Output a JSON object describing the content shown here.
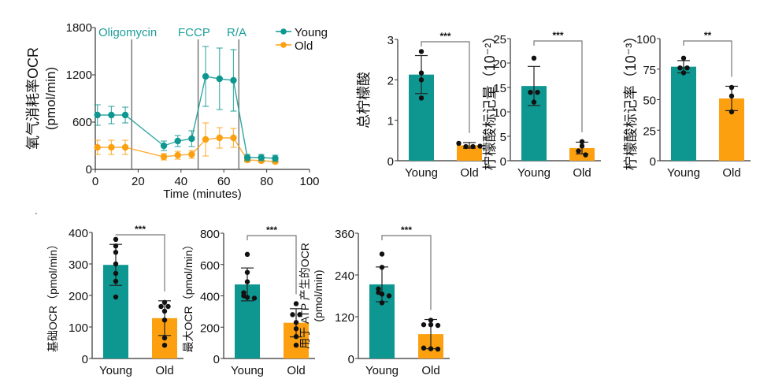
{
  "colors": {
    "young": "#0e9791",
    "old": "#fca010",
    "annotation": "#1b9e98",
    "axis": "#333333",
    "bracket": "#777777"
  },
  "stray_mark": "`",
  "chart_data": [
    {
      "id": "ocr-timecourse",
      "type": "line",
      "title": "",
      "xlabel": "Time (minutes)",
      "ylabel_lines": [
        "氧气消耗率OCR",
        "(pmol/min)"
      ],
      "xlim": [
        0,
        100
      ],
      "ylim": [
        0,
        1800
      ],
      "xticks": [
        0,
        20,
        40,
        60,
        80,
        100
      ],
      "yticks": [
        0,
        600,
        1200,
        1800
      ],
      "legend": {
        "position": "top-right",
        "entries": [
          "Young",
          "Old"
        ]
      },
      "injections": [
        {
          "label": "Oligomycin",
          "x": 17
        },
        {
          "label": "FCCP",
          "x": 48
        },
        {
          "label": "R/A",
          "x": 67
        }
      ],
      "x": [
        1,
        7.5,
        14,
        32,
        38.5,
        45,
        51.5,
        58,
        64.5,
        71,
        77.5,
        84
      ],
      "series": [
        {
          "name": "Young",
          "values": [
            690,
            690,
            690,
            300,
            360,
            390,
            1180,
            1150,
            1130,
            150,
            150,
            140
          ],
          "err": [
            130,
            110,
            100,
            60,
            70,
            100,
            380,
            390,
            390,
            40,
            40,
            40
          ]
        },
        {
          "name": "Old",
          "values": [
            280,
            280,
            280,
            160,
            180,
            190,
            380,
            400,
            400,
            120,
            110,
            100
          ],
          "err": [
            90,
            90,
            90,
            40,
            50,
            50,
            210,
            130,
            120,
            25,
            20,
            20
          ]
        }
      ]
    },
    {
      "id": "total-citrate",
      "type": "bar",
      "ylabel": "总柠檬酸",
      "categories": [
        "Young",
        "Old"
      ],
      "ylim": [
        0,
        3
      ],
      "yticks": [
        0,
        1,
        2,
        3
      ],
      "values": [
        2.13,
        0.38
      ],
      "sd": [
        0.47,
        0.07
      ],
      "points": [
        [
          2.7,
          2.17,
          2.0,
          1.55
        ],
        [
          0.43,
          0.35,
          0.35,
          0.36
        ]
      ],
      "significance": "***"
    },
    {
      "id": "citrate-labeled-amount",
      "type": "bar",
      "ylabel": "柠檬酸标记量（10⁻²）",
      "categories": [
        "Young",
        "Old"
      ],
      "ylim": [
        0,
        25
      ],
      "yticks": [
        0,
        5,
        10,
        15,
        20,
        25
      ],
      "values": [
        15.3,
        2.6
      ],
      "sd": [
        4.0,
        1.2
      ],
      "points": [
        [
          21,
          14,
          14,
          12
        ],
        [
          3.9,
          3.0,
          2.0,
          1.2
        ]
      ],
      "significance": "***"
    },
    {
      "id": "citrate-labeling-rate",
      "type": "bar",
      "ylabel": "柠檬酸标记率（10⁻³）",
      "categories": [
        "Young",
        "Old"
      ],
      "ylim": [
        0,
        100
      ],
      "yticks": [
        0,
        25,
        50,
        75,
        100
      ],
      "values": [
        77,
        51
      ],
      "sd": [
        5,
        10
      ],
      "points": [
        [
          84,
          76,
          76,
          72
        ],
        [
          60,
          53,
          40
        ]
      ],
      "significance": "**"
    },
    {
      "id": "basal-ocr",
      "type": "bar",
      "ylabel": "基础OCR（pmol/min）",
      "categories": [
        "Young",
        "Old"
      ],
      "ylim": [
        0,
        400
      ],
      "yticks": [
        0,
        100,
        200,
        300,
        400
      ],
      "values": [
        297,
        128
      ],
      "sd": [
        65,
        55
      ],
      "points": [
        [
          378,
          357,
          337,
          300,
          270,
          245,
          195
        ],
        [
          178,
          165,
          165,
          150,
          122,
          65,
          42
        ]
      ],
      "significance": "***"
    },
    {
      "id": "maximal-ocr",
      "type": "bar",
      "ylabel": "最大OCR（pmol/min）",
      "categories": [
        "Young",
        "Old"
      ],
      "ylim": [
        0,
        800
      ],
      "yticks": [
        0,
        200,
        400,
        600,
        800
      ],
      "values": [
        473,
        228
      ],
      "sd": [
        105,
        90
      ],
      "points": [
        [
          665,
          550,
          490,
          420,
          400,
          390,
          385
        ],
        [
          350,
          280,
          280,
          230,
          190,
          140,
          85
        ]
      ],
      "significance": "***"
    },
    {
      "id": "atp-linked-ocr",
      "type": "bar",
      "ylabel_lines": [
        "用于 ATP 产生的OCR",
        "(pmol/min)"
      ],
      "categories": [
        "Young",
        "Old"
      ],
      "ylim": [
        0,
        360
      ],
      "yticks": [
        0,
        120,
        240,
        360
      ],
      "values": [
        213,
        70
      ],
      "sd": [
        50,
        42
      ],
      "points": [
        [
          300,
          262,
          200,
          190,
          185,
          180,
          160
        ],
        [
          110,
          97,
          97,
          95,
          30,
          28,
          27
        ]
      ],
      "significance": "***"
    }
  ]
}
